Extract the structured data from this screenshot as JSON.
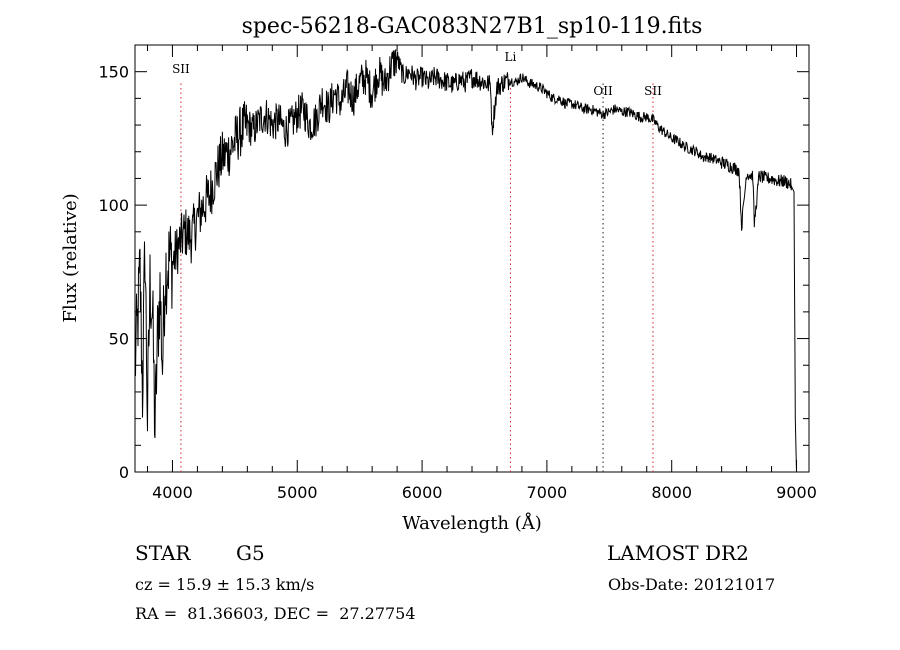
{
  "chart_data": {
    "type": "line",
    "title": "spec-56218-GAC083N27B1_sp10-119.fits",
    "xlabel": "Wavelength (Å)",
    "ylabel": "Flux (relative)",
    "xlim": [
      3700,
      9100
    ],
    "ylim": [
      0,
      160
    ],
    "xticks": [
      "4000",
      "5000",
      "6000",
      "7000",
      "8000",
      "9000"
    ],
    "yticks": [
      "0",
      "50",
      "100",
      "150"
    ],
    "xtick_values": [
      4000,
      5000,
      6000,
      7000,
      8000,
      9000
    ],
    "ytick_values": [
      0,
      50,
      100,
      150
    ],
    "grid": false,
    "lines": [
      {
        "label": "SII",
        "x": 4068,
        "color": "#d62728"
      },
      {
        "label": "Li",
        "x": 6708,
        "color": "#d62728"
      },
      {
        "label": "OII",
        "x": 7450,
        "color": "#1f1f1f"
      },
      {
        "label": "SII",
        "x": 7850,
        "color": "#d62728"
      }
    ],
    "series": [
      {
        "color": "#000000",
        "x": [
          3700,
          3720,
          3740,
          3760,
          3780,
          3800,
          3820,
          3840,
          3860,
          3880,
          3900,
          3920,
          3940,
          3960,
          3980,
          4000,
          4050,
          4100,
          4150,
          4200,
          4250,
          4300,
          4350,
          4400,
          4450,
          4500,
          4550,
          4600,
          4650,
          4700,
          4750,
          4800,
          4850,
          4900,
          4950,
          5000,
          5050,
          5100,
          5150,
          5200,
          5250,
          5300,
          5350,
          5400,
          5450,
          5500,
          5550,
          5600,
          5650,
          5700,
          5750,
          5800,
          5850,
          5900,
          5950,
          6000,
          6050,
          6100,
          6150,
          6200,
          6250,
          6300,
          6350,
          6400,
          6450,
          6500,
          6550,
          6560,
          6600,
          6650,
          6700,
          6750,
          6800,
          6850,
          6900,
          6950,
          7000,
          7050,
          7100,
          7150,
          7200,
          7250,
          7300,
          7350,
          7400,
          7450,
          7500,
          7550,
          7600,
          7650,
          7700,
          7750,
          7800,
          7850,
          7900,
          7950,
          8000,
          8050,
          8100,
          8150,
          8200,
          8250,
          8300,
          8350,
          8400,
          8450,
          8500,
          8540,
          8560,
          8600,
          8650,
          8662,
          8700,
          8750,
          8800,
          8850,
          8900,
          8950,
          8980,
          8990,
          9000
        ],
        "y": [
          40,
          55,
          75,
          30,
          85,
          20,
          70,
          60,
          15,
          50,
          68,
          40,
          75,
          78,
          80,
          78,
          85,
          90,
          88,
          95,
          100,
          104,
          112,
          118,
          120,
          124,
          128,
          130,
          128,
          132,
          134,
          130,
          132,
          128,
          130,
          134,
          136,
          130,
          132,
          140,
          136,
          142,
          138,
          144,
          140,
          146,
          148,
          142,
          150,
          145,
          152,
          155,
          148,
          150,
          147,
          148,
          146,
          148,
          147,
          146,
          145,
          147,
          146,
          148,
          147,
          146,
          145,
          128,
          144,
          146,
          147,
          146,
          148,
          146,
          145,
          144,
          142,
          140,
          140,
          138,
          138,
          137,
          136,
          136,
          135,
          134,
          135,
          136,
          135,
          135,
          134,
          133,
          133,
          132,
          129,
          127,
          125,
          124,
          122,
          121,
          120,
          118,
          118,
          117,
          116,
          115,
          114,
          113,
          92,
          112,
          111,
          93,
          111,
          110,
          110,
          109,
          109,
          108,
          105,
          20,
          0
        ]
      }
    ]
  },
  "footer": {
    "object_type": "STAR",
    "subclass": "G5",
    "survey": "LAMOST DR2",
    "cz": "cz = 15.9 ± 15.3 km/s",
    "obs_date": "Obs-Date: 20121017",
    "radec": "RA =  81.36603, DEC =  27.27754"
  }
}
